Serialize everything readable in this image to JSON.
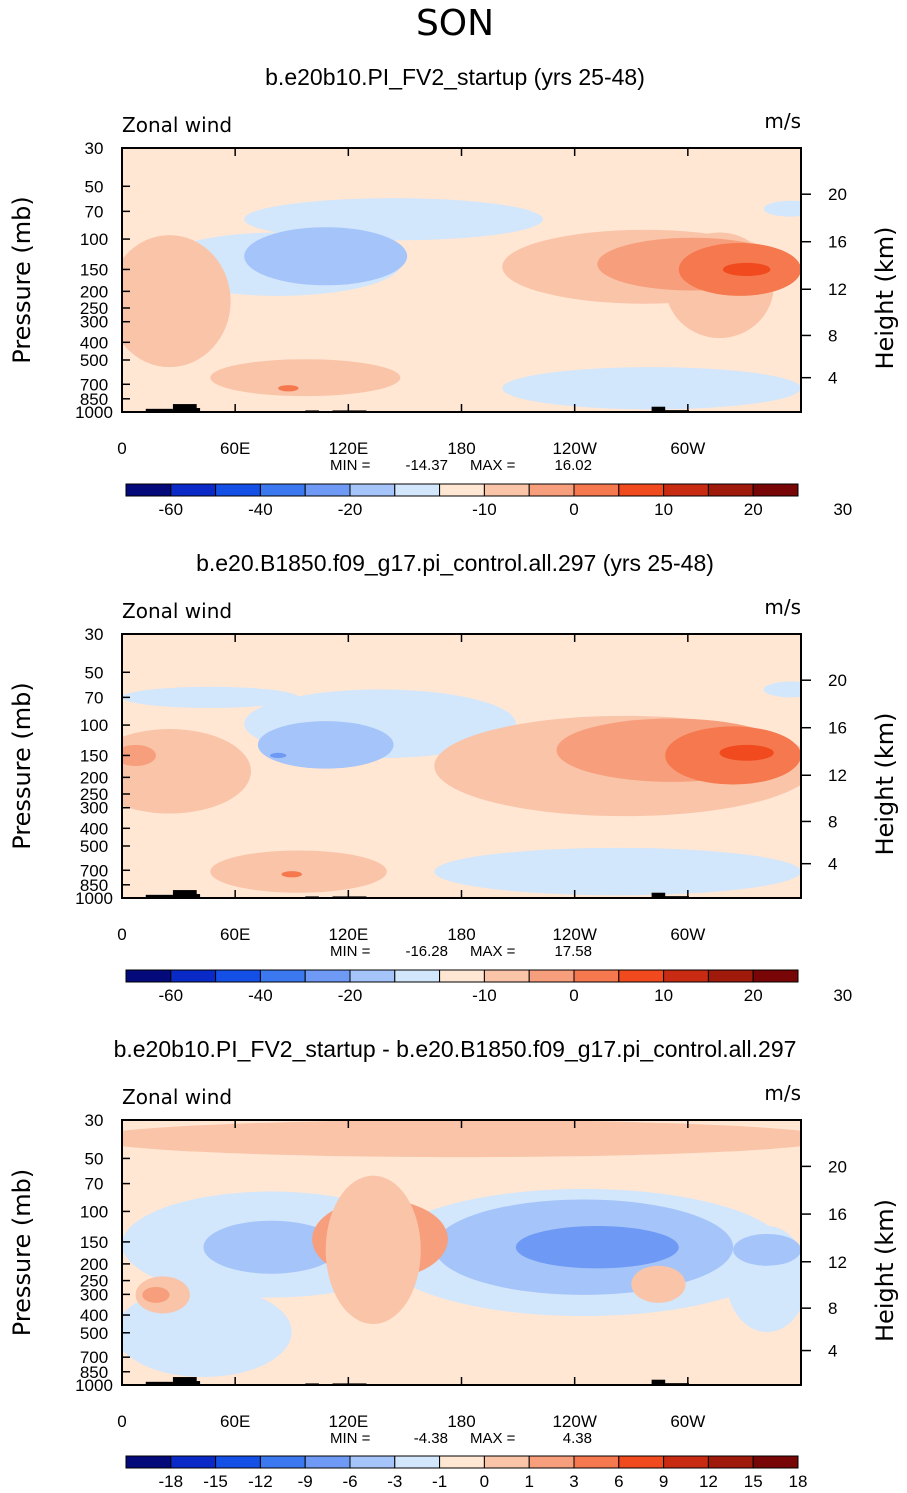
{
  "page_title": "SON",
  "chart_data": [
    {
      "type": "contour",
      "title": "b.e20b10.PI_FV2_startup (yrs 25-48)",
      "variable_label": "Zonal wind",
      "units": "m/s",
      "ylabel": "Pressure (mb)",
      "y2label": "Height (km)",
      "pressure_ticks": [
        "30",
        "50",
        "70",
        "100",
        "150",
        "200",
        "250",
        "300",
        "400",
        "500",
        "700",
        "850",
        "1000"
      ],
      "height_ticks": [
        "20",
        "16",
        "12",
        "8",
        "4"
      ],
      "x_ticks": [
        "0",
        "60E",
        "120E",
        "180",
        "120W",
        "60W"
      ],
      "min_label": "MIN =",
      "min_value": "-14.37",
      "max_label": "MAX =",
      "max_value": "16.02",
      "colorbar_labels": [
        "-60",
        "-40",
        "-20",
        "-10",
        "0",
        "10",
        "20",
        "30"
      ]
    },
    {
      "type": "contour",
      "title": "b.e20.B1850.f09_g17.pi_control.all.297 (yrs 25-48)",
      "variable_label": "Zonal wind",
      "units": "m/s",
      "ylabel": "Pressure (mb)",
      "y2label": "Height (km)",
      "pressure_ticks": [
        "30",
        "50",
        "70",
        "100",
        "150",
        "200",
        "250",
        "300",
        "400",
        "500",
        "700",
        "850",
        "1000"
      ],
      "height_ticks": [
        "20",
        "16",
        "12",
        "8",
        "4"
      ],
      "x_ticks": [
        "0",
        "60E",
        "120E",
        "180",
        "120W",
        "60W"
      ],
      "min_label": "MIN =",
      "min_value": "-16.28",
      "max_label": "MAX =",
      "max_value": "17.58",
      "colorbar_labels": [
        "-60",
        "-40",
        "-20",
        "-10",
        "0",
        "10",
        "20",
        "30"
      ]
    },
    {
      "type": "contour",
      "title": "b.e20b10.PI_FV2_startup - b.e20.B1850.f09_g17.pi_control.all.297",
      "variable_label": "Zonal wind",
      "units": "m/s",
      "ylabel": "Pressure (mb)",
      "y2label": "Height (km)",
      "pressure_ticks": [
        "30",
        "50",
        "70",
        "100",
        "150",
        "200",
        "250",
        "300",
        "400",
        "500",
        "700",
        "850",
        "1000"
      ],
      "height_ticks": [
        "20",
        "16",
        "12",
        "8",
        "4"
      ],
      "x_ticks": [
        "0",
        "60E",
        "120E",
        "180",
        "120W",
        "60W"
      ],
      "min_label": "MIN =",
      "min_value": "-4.38",
      "max_label": "MAX =",
      "max_value": "4.38",
      "colorbar_labels": [
        "-18",
        "-15",
        "-12",
        "-9",
        "-6",
        "-3",
        "-1",
        "0",
        "1",
        "3",
        "6",
        "9",
        "12",
        "15",
        "18"
      ]
    }
  ],
  "colors": {
    "palette": [
      "#050a7a",
      "#0a2ac8",
      "#1450e6",
      "#3c78f0",
      "#6e9af5",
      "#a4c4fa",
      "#d2e6fc",
      "#ffe7d4",
      "#fac4a8",
      "#f79e7c",
      "#f5784e",
      "#f04a1e",
      "#c82a12",
      "#a01a0c",
      "#780606"
    ],
    "background_fill": "#ffe7d4",
    "topography": "#000000"
  }
}
